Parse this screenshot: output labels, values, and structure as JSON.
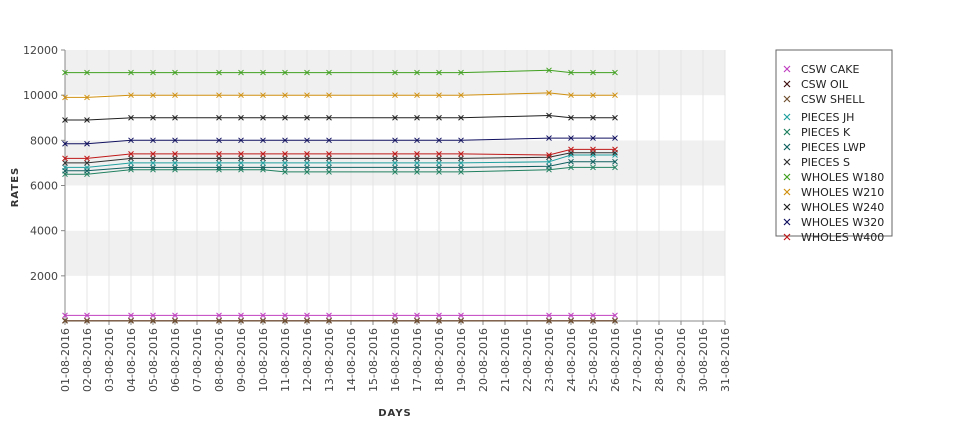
{
  "chart_data": {
    "type": "line",
    "xlabel": "DAYS",
    "ylabel": "RATES",
    "ylim": [
      0,
      12000
    ],
    "yticks": [
      2000,
      4000,
      6000,
      8000,
      10000,
      12000
    ],
    "x": [
      "01-08-2016",
      "02-08-2016",
      "03-08-2016",
      "04-08-2016",
      "05-08-2016",
      "06-08-2016",
      "07-08-2016",
      "08-08-2016",
      "09-08-2016",
      "10-08-2016",
      "11-08-2016",
      "12-08-2016",
      "13-08-2016",
      "14-08-2016",
      "15-08-2016",
      "16-08-2016",
      "17-08-2016",
      "18-08-2016",
      "19-08-2016",
      "20-08-2016",
      "21-08-2016",
      "22-08-2016",
      "23-08-2016",
      "24-08-2016",
      "25-08-2016",
      "26-08-2016",
      "27-08-2016",
      "28-08-2016",
      "29-08-2016",
      "30-08-2016",
      "31-08-2016"
    ],
    "grid": true,
    "legend_position": "right",
    "series": [
      {
        "name": "CSW CAKE",
        "color": "#c040c0",
        "points": [
          [
            "01-08-2016",
            250
          ],
          [
            "02-08-2016",
            250
          ],
          [
            "04-08-2016",
            250
          ],
          [
            "05-08-2016",
            250
          ],
          [
            "06-08-2016",
            250
          ],
          [
            "08-08-2016",
            250
          ],
          [
            "09-08-2016",
            250
          ],
          [
            "10-08-2016",
            250
          ],
          [
            "11-08-2016",
            250
          ],
          [
            "12-08-2016",
            250
          ],
          [
            "13-08-2016",
            250
          ],
          [
            "16-08-2016",
            250
          ],
          [
            "17-08-2016",
            250
          ],
          [
            "18-08-2016",
            250
          ],
          [
            "19-08-2016",
            250
          ],
          [
            "23-08-2016",
            250
          ],
          [
            "24-08-2016",
            250
          ],
          [
            "25-08-2016",
            250
          ],
          [
            "26-08-2016",
            250
          ]
        ]
      },
      {
        "name": "CSW OIL",
        "color": "#401010",
        "points": [
          [
            "01-08-2016",
            15
          ],
          [
            "02-08-2016",
            15
          ],
          [
            "04-08-2016",
            15
          ],
          [
            "05-08-2016",
            15
          ],
          [
            "06-08-2016",
            15
          ],
          [
            "08-08-2016",
            15
          ],
          [
            "09-08-2016",
            15
          ],
          [
            "10-08-2016",
            15
          ],
          [
            "11-08-2016",
            15
          ],
          [
            "12-08-2016",
            15
          ],
          [
            "13-08-2016",
            15
          ],
          [
            "16-08-2016",
            15
          ],
          [
            "17-08-2016",
            15
          ],
          [
            "18-08-2016",
            15
          ],
          [
            "19-08-2016",
            15
          ],
          [
            "23-08-2016",
            15
          ],
          [
            "24-08-2016",
            15
          ],
          [
            "25-08-2016",
            15
          ],
          [
            "26-08-2016",
            15
          ]
        ]
      },
      {
        "name": "CSW SHELL",
        "color": "#705030",
        "points": [
          [
            "01-08-2016",
            5
          ],
          [
            "02-08-2016",
            5
          ],
          [
            "04-08-2016",
            5
          ],
          [
            "05-08-2016",
            5
          ],
          [
            "06-08-2016",
            5
          ],
          [
            "08-08-2016",
            5
          ],
          [
            "09-08-2016",
            5
          ],
          [
            "10-08-2016",
            5
          ],
          [
            "11-08-2016",
            5
          ],
          [
            "12-08-2016",
            5
          ],
          [
            "13-08-2016",
            5
          ],
          [
            "16-08-2016",
            5
          ],
          [
            "17-08-2016",
            5
          ],
          [
            "18-08-2016",
            5
          ],
          [
            "19-08-2016",
            5
          ],
          [
            "23-08-2016",
            5
          ],
          [
            "24-08-2016",
            5
          ],
          [
            "25-08-2016",
            5
          ],
          [
            "26-08-2016",
            5
          ]
        ]
      },
      {
        "name": "PIECES JH",
        "color": "#20a0a0",
        "points": [
          [
            "01-08-2016",
            6800
          ],
          [
            "02-08-2016",
            6800
          ],
          [
            "04-08-2016",
            7000
          ],
          [
            "05-08-2016",
            7000
          ],
          [
            "06-08-2016",
            7000
          ],
          [
            "08-08-2016",
            7000
          ],
          [
            "09-08-2016",
            7000
          ],
          [
            "10-08-2016",
            7000
          ],
          [
            "11-08-2016",
            7000
          ],
          [
            "12-08-2016",
            7000
          ],
          [
            "13-08-2016",
            7000
          ],
          [
            "16-08-2016",
            7000
          ],
          [
            "17-08-2016",
            7000
          ],
          [
            "18-08-2016",
            7000
          ],
          [
            "19-08-2016",
            7000
          ],
          [
            "23-08-2016",
            7050
          ],
          [
            "24-08-2016",
            7350
          ],
          [
            "25-08-2016",
            7350
          ],
          [
            "26-08-2016",
            7350
          ]
        ]
      },
      {
        "name": "PIECES K",
        "color": "#208060",
        "points": [
          [
            "01-08-2016",
            6500
          ],
          [
            "02-08-2016",
            6500
          ],
          [
            "04-08-2016",
            6700
          ],
          [
            "05-08-2016",
            6700
          ],
          [
            "06-08-2016",
            6700
          ],
          [
            "08-08-2016",
            6700
          ],
          [
            "09-08-2016",
            6700
          ],
          [
            "10-08-2016",
            6700
          ],
          [
            "11-08-2016",
            6600
          ],
          [
            "12-08-2016",
            6600
          ],
          [
            "13-08-2016",
            6600
          ],
          [
            "16-08-2016",
            6600
          ],
          [
            "17-08-2016",
            6600
          ],
          [
            "18-08-2016",
            6600
          ],
          [
            "19-08-2016",
            6600
          ],
          [
            "23-08-2016",
            6700
          ],
          [
            "24-08-2016",
            6800
          ],
          [
            "25-08-2016",
            6800
          ],
          [
            "26-08-2016",
            6800
          ]
        ]
      },
      {
        "name": "PIECES LWP",
        "color": "#106060",
        "points": [
          [
            "01-08-2016",
            6650
          ],
          [
            "02-08-2016",
            6650
          ],
          [
            "04-08-2016",
            6800
          ],
          [
            "05-08-2016",
            6800
          ],
          [
            "06-08-2016",
            6800
          ],
          [
            "08-08-2016",
            6800
          ],
          [
            "09-08-2016",
            6800
          ],
          [
            "10-08-2016",
            6800
          ],
          [
            "11-08-2016",
            6800
          ],
          [
            "12-08-2016",
            6800
          ],
          [
            "13-08-2016",
            6800
          ],
          [
            "16-08-2016",
            6800
          ],
          [
            "17-08-2016",
            6800
          ],
          [
            "18-08-2016",
            6800
          ],
          [
            "19-08-2016",
            6800
          ],
          [
            "23-08-2016",
            6850
          ],
          [
            "24-08-2016",
            7050
          ],
          [
            "25-08-2016",
            7050
          ],
          [
            "26-08-2016",
            7050
          ]
        ]
      },
      {
        "name": "PIECES S",
        "color": "#303030",
        "points": [
          [
            "01-08-2016",
            7000
          ],
          [
            "02-08-2016",
            7000
          ],
          [
            "04-08-2016",
            7200
          ],
          [
            "05-08-2016",
            7200
          ],
          [
            "06-08-2016",
            7200
          ],
          [
            "08-08-2016",
            7200
          ],
          [
            "09-08-2016",
            7200
          ],
          [
            "10-08-2016",
            7200
          ],
          [
            "11-08-2016",
            7200
          ],
          [
            "12-08-2016",
            7200
          ],
          [
            "13-08-2016",
            7200
          ],
          [
            "16-08-2016",
            7200
          ],
          [
            "17-08-2016",
            7200
          ],
          [
            "18-08-2016",
            7200
          ],
          [
            "19-08-2016",
            7200
          ],
          [
            "23-08-2016",
            7250
          ],
          [
            "24-08-2016",
            7450
          ],
          [
            "25-08-2016",
            7450
          ],
          [
            "26-08-2016",
            7450
          ]
        ]
      },
      {
        "name": "WHOLES W180",
        "color": "#40a020",
        "points": [
          [
            "01-08-2016",
            11000
          ],
          [
            "02-08-2016",
            11000
          ],
          [
            "04-08-2016",
            11000
          ],
          [
            "05-08-2016",
            11000
          ],
          [
            "06-08-2016",
            11000
          ],
          [
            "08-08-2016",
            11000
          ],
          [
            "09-08-2016",
            11000
          ],
          [
            "10-08-2016",
            11000
          ],
          [
            "11-08-2016",
            11000
          ],
          [
            "12-08-2016",
            11000
          ],
          [
            "13-08-2016",
            11000
          ],
          [
            "16-08-2016",
            11000
          ],
          [
            "17-08-2016",
            11000
          ],
          [
            "18-08-2016",
            11000
          ],
          [
            "19-08-2016",
            11000
          ],
          [
            "23-08-2016",
            11100
          ],
          [
            "24-08-2016",
            11000
          ],
          [
            "25-08-2016",
            11000
          ],
          [
            "26-08-2016",
            11000
          ]
        ]
      },
      {
        "name": "WHOLES W210",
        "color": "#d09010",
        "points": [
          [
            "01-08-2016",
            9900
          ],
          [
            "02-08-2016",
            9900
          ],
          [
            "04-08-2016",
            10000
          ],
          [
            "05-08-2016",
            10000
          ],
          [
            "06-08-2016",
            10000
          ],
          [
            "08-08-2016",
            10000
          ],
          [
            "09-08-2016",
            10000
          ],
          [
            "10-08-2016",
            10000
          ],
          [
            "11-08-2016",
            10000
          ],
          [
            "12-08-2016",
            10000
          ],
          [
            "13-08-2016",
            10000
          ],
          [
            "16-08-2016",
            10000
          ],
          [
            "17-08-2016",
            10000
          ],
          [
            "18-08-2016",
            10000
          ],
          [
            "19-08-2016",
            10000
          ],
          [
            "23-08-2016",
            10100
          ],
          [
            "24-08-2016",
            10000
          ],
          [
            "25-08-2016",
            10000
          ],
          [
            "26-08-2016",
            10000
          ]
        ]
      },
      {
        "name": "WHOLES W240",
        "color": "#202020",
        "points": [
          [
            "01-08-2016",
            8900
          ],
          [
            "02-08-2016",
            8900
          ],
          [
            "04-08-2016",
            9000
          ],
          [
            "05-08-2016",
            9000
          ],
          [
            "06-08-2016",
            9000
          ],
          [
            "08-08-2016",
            9000
          ],
          [
            "09-08-2016",
            9000
          ],
          [
            "10-08-2016",
            9000
          ],
          [
            "11-08-2016",
            9000
          ],
          [
            "12-08-2016",
            9000
          ],
          [
            "13-08-2016",
            9000
          ],
          [
            "16-08-2016",
            9000
          ],
          [
            "17-08-2016",
            9000
          ],
          [
            "18-08-2016",
            9000
          ],
          [
            "19-08-2016",
            9000
          ],
          [
            "23-08-2016",
            9100
          ],
          [
            "24-08-2016",
            9000
          ],
          [
            "25-08-2016",
            9000
          ],
          [
            "26-08-2016",
            9000
          ]
        ]
      },
      {
        "name": "WHOLES W320",
        "color": "#101060",
        "points": [
          [
            "01-08-2016",
            7850
          ],
          [
            "02-08-2016",
            7850
          ],
          [
            "04-08-2016",
            8000
          ],
          [
            "05-08-2016",
            8000
          ],
          [
            "06-08-2016",
            8000
          ],
          [
            "08-08-2016",
            8000
          ],
          [
            "09-08-2016",
            8000
          ],
          [
            "10-08-2016",
            8000
          ],
          [
            "11-08-2016",
            8000
          ],
          [
            "12-08-2016",
            8000
          ],
          [
            "13-08-2016",
            8000
          ],
          [
            "16-08-2016",
            8000
          ],
          [
            "17-08-2016",
            8000
          ],
          [
            "18-08-2016",
            8000
          ],
          [
            "19-08-2016",
            8000
          ],
          [
            "23-08-2016",
            8100
          ],
          [
            "24-08-2016",
            8100
          ],
          [
            "25-08-2016",
            8100
          ],
          [
            "26-08-2016",
            8100
          ]
        ]
      },
      {
        "name": "WHOLES W400",
        "color": "#c01818",
        "points": [
          [
            "01-08-2016",
            7200
          ],
          [
            "02-08-2016",
            7200
          ],
          [
            "04-08-2016",
            7400
          ],
          [
            "05-08-2016",
            7400
          ],
          [
            "06-08-2016",
            7400
          ],
          [
            "08-08-2016",
            7400
          ],
          [
            "09-08-2016",
            7400
          ],
          [
            "10-08-2016",
            7400
          ],
          [
            "11-08-2016",
            7400
          ],
          [
            "12-08-2016",
            7400
          ],
          [
            "13-08-2016",
            7400
          ],
          [
            "16-08-2016",
            7400
          ],
          [
            "17-08-2016",
            7400
          ],
          [
            "18-08-2016",
            7400
          ],
          [
            "19-08-2016",
            7400
          ],
          [
            "23-08-2016",
            7350
          ],
          [
            "24-08-2016",
            7600
          ],
          [
            "25-08-2016",
            7600
          ],
          [
            "26-08-2016",
            7600
          ]
        ]
      }
    ]
  }
}
